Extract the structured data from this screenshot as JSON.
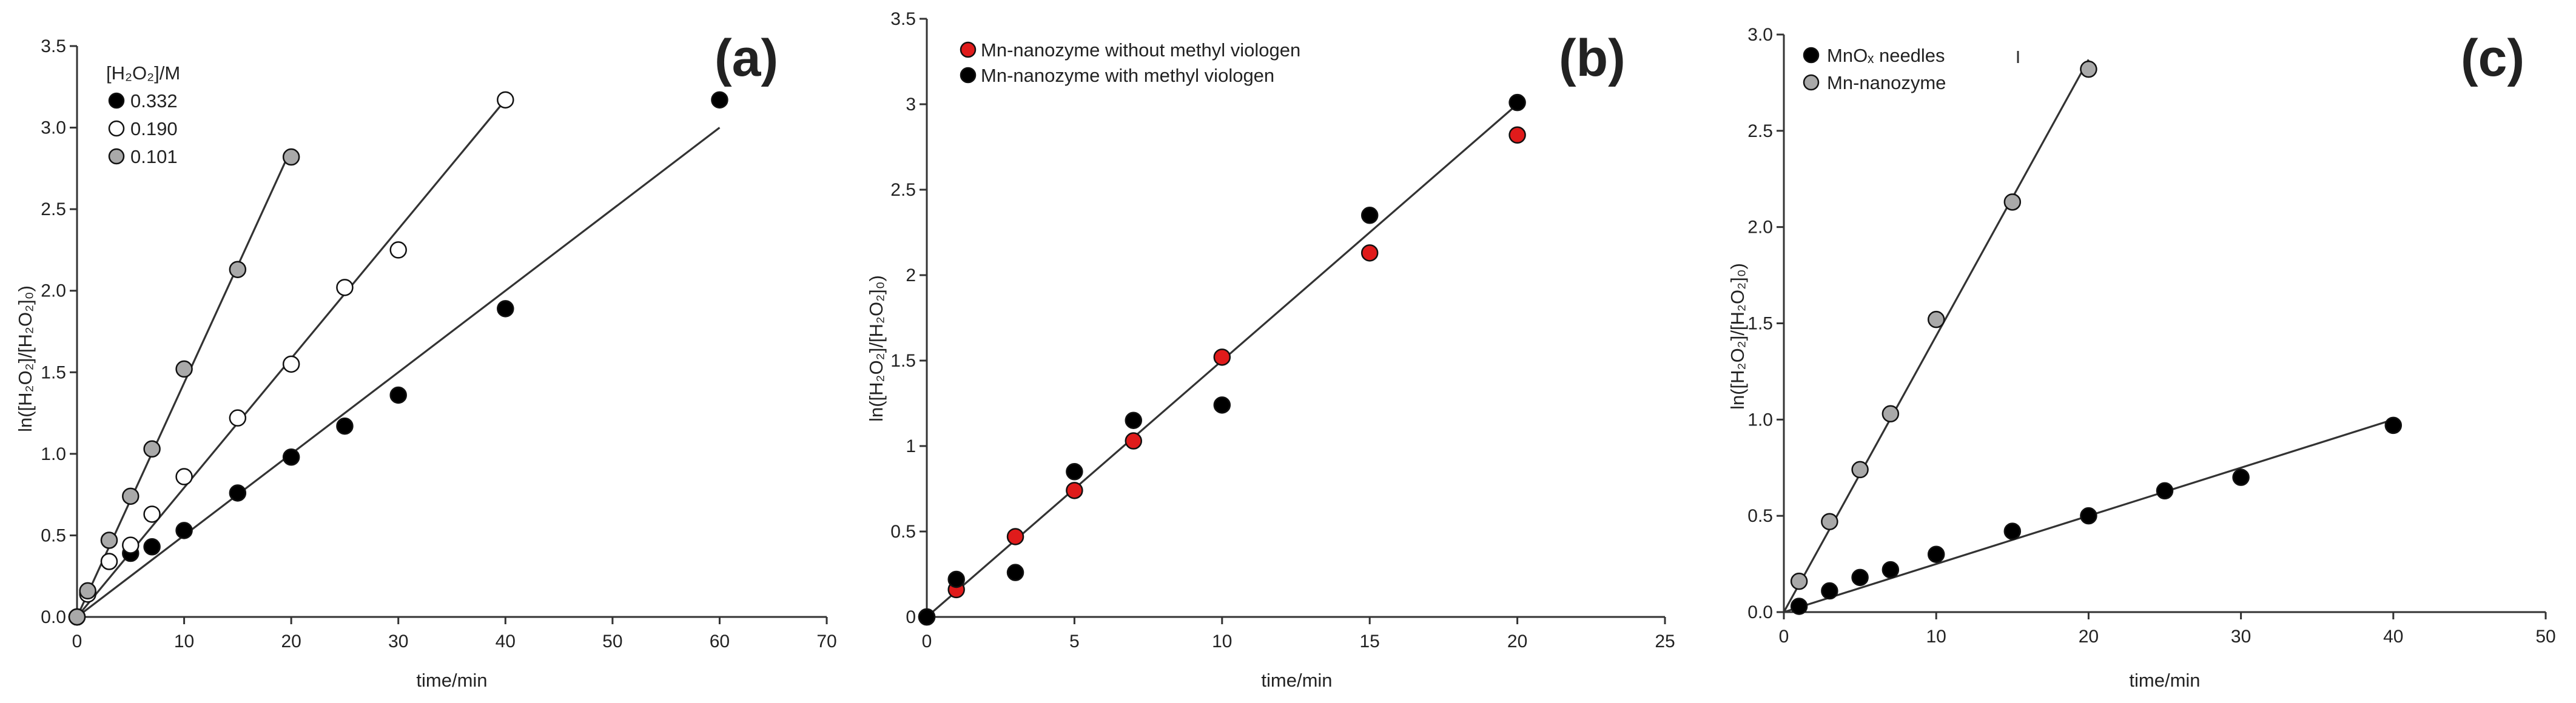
{
  "chart_data": [
    {
      "type": "scatter",
      "panel_label": "(a)",
      "title": "",
      "xlabel": "time/min",
      "ylabel": "ln([H₂O₂]/[H₂O₂]₀)",
      "xlim": [
        0,
        70
      ],
      "ylim": [
        0,
        3.5
      ],
      "x_ticks": [
        0,
        10,
        20,
        30,
        40,
        50,
        60,
        70
      ],
      "x_tick_labels": [
        "0",
        "10",
        "20",
        "30",
        "40",
        "50",
        "60",
        "70"
      ],
      "y_ticks": [
        0,
        0.5,
        1,
        1.5,
        2,
        2.5,
        3,
        3.5
      ],
      "y_tick_labels": [
        "0.0",
        "0.5",
        "1.0",
        "1.5",
        "2.0",
        "2.5",
        "3.0",
        "3.5"
      ],
      "legend_title": "[H₂O₂]/M",
      "legend_position": "top-left",
      "series": [
        {
          "name": "0.332",
          "marker_color": "#000000",
          "x": [
            0,
            1,
            5,
            7,
            10,
            15,
            20,
            25,
            30,
            40,
            60
          ],
          "y": [
            0,
            0.15,
            0.39,
            0.43,
            0.53,
            0.76,
            0.98,
            1.17,
            1.36,
            1.89,
            3.17
          ],
          "fit": {
            "x": [
              0,
              60
            ],
            "y": [
              0,
              3.0
            ]
          }
        },
        {
          "name": "0.190",
          "marker_color": "#ffffff",
          "x": [
            0,
            1,
            3,
            5,
            7,
            10,
            15,
            20,
            25,
            30,
            40
          ],
          "y": [
            0,
            0.14,
            0.34,
            0.44,
            0.63,
            0.86,
            1.22,
            1.55,
            2.02,
            2.25,
            3.17
          ],
          "fit": {
            "x": [
              0,
              40
            ],
            "y": [
              0,
              3.17
            ]
          }
        },
        {
          "name": "0.101",
          "marker_color": "#a9a9a9",
          "x": [
            0,
            1,
            3,
            5,
            7,
            10,
            15,
            20
          ],
          "y": [
            0,
            0.16,
            0.47,
            0.74,
            1.03,
            1.52,
            2.13,
            2.82
          ],
          "fit": {
            "x": [
              0,
              20
            ],
            "y": [
              0,
              2.87
            ]
          }
        }
      ]
    },
    {
      "type": "scatter",
      "panel_label": "(b)",
      "title": "",
      "xlabel": "time/min",
      "ylabel": "ln([H₂O₂]/[H₂O₂]₀)",
      "xlim": [
        0,
        25
      ],
      "ylim": [
        0,
        3.5
      ],
      "x_ticks": [
        0,
        5,
        10,
        15,
        20,
        25
      ],
      "x_tick_labels": [
        "0",
        "5",
        "10",
        "15",
        "20",
        "25"
      ],
      "y_ticks": [
        0,
        0.5,
        1,
        1.5,
        2,
        2.5,
        3,
        3.5
      ],
      "y_tick_labels": [
        "0",
        "0.5",
        "1",
        "1.5",
        "2",
        "2.5",
        "3",
        "3.5"
      ],
      "legend_title": "",
      "legend_position": "top-left",
      "series": [
        {
          "name": "Mn-nanozyme without methyl viologen",
          "marker_color": "#e01b1b",
          "x": [
            0,
            1,
            3,
            5,
            7,
            10,
            15,
            20
          ],
          "y": [
            0,
            0.16,
            0.47,
            0.74,
            1.03,
            1.52,
            2.13,
            2.82
          ]
        },
        {
          "name": "Mn-nanozyme with methyl viologen",
          "marker_color": "#000000",
          "x": [
            0,
            1,
            3,
            5,
            7,
            10,
            15,
            20
          ],
          "y": [
            0,
            0.22,
            0.26,
            0.85,
            1.15,
            1.24,
            2.35,
            3.01
          ],
          "fit": {
            "x": [
              0,
              20
            ],
            "y": [
              0,
              3.0
            ]
          }
        }
      ]
    },
    {
      "type": "scatter",
      "panel_label": "(c)",
      "title": "",
      "xlabel": "time/min",
      "ylabel": "ln([H₂O₂]/[H₂O₂]₀)",
      "xlim": [
        0,
        50
      ],
      "ylim": [
        0,
        3.0
      ],
      "x_ticks": [
        0,
        10,
        20,
        30,
        40,
        50
      ],
      "x_tick_labels": [
        "0",
        "10",
        "20",
        "30",
        "40",
        "50"
      ],
      "y_ticks": [
        0,
        0.5,
        1,
        1.5,
        2,
        2.5,
        3
      ],
      "y_tick_labels": [
        "0.0",
        "0.5",
        "1.0",
        "1.5",
        "2.0",
        "2.5",
        "3.0"
      ],
      "legend_title": "",
      "legend_position": "top-left",
      "series": [
        {
          "name": "MnOₓ needles",
          "marker_color": "#000000",
          "x": [
            1,
            3,
            5,
            7,
            10,
            15,
            20,
            25,
            30,
            40
          ],
          "y": [
            0.03,
            0.11,
            0.18,
            0.22,
            0.3,
            0.42,
            0.5,
            0.63,
            0.7,
            0.97
          ],
          "fit": {
            "x": [
              0,
              40
            ],
            "y": [
              0,
              1.0
            ]
          }
        },
        {
          "name": "Mn-nanozyme",
          "marker_color": "#a9a9a9",
          "x": [
            1,
            3,
            5,
            7,
            10,
            15,
            20
          ],
          "y": [
            0.16,
            0.47,
            0.74,
            1.03,
            1.52,
            2.13,
            2.82
          ],
          "fit": {
            "x": [
              0,
              20
            ],
            "y": [
              0,
              2.87
            ]
          }
        }
      ]
    }
  ]
}
